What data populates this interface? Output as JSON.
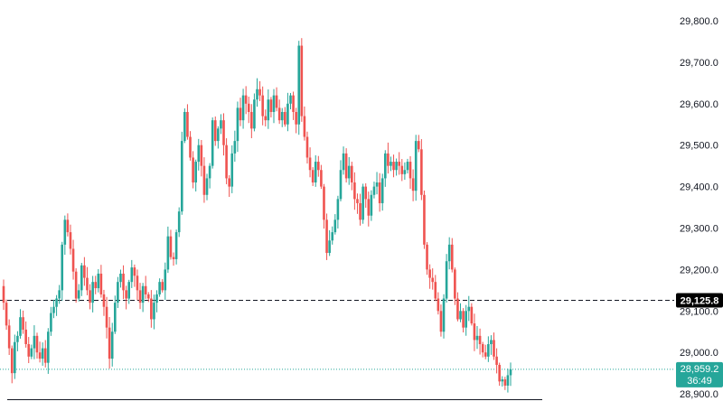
{
  "chart_data": {
    "type": "candlestick",
    "price_axis": {
      "ticks": [
        "29,800.0",
        "29,700.0",
        "29,600.0",
        "29,500.0",
        "29,400.0",
        "29,300.0",
        "29,200.0",
        "29,100.0",
        "29,000.0",
        "28,900.0"
      ],
      "tick_values": [
        29800,
        29700,
        29600,
        29500,
        29400,
        29300,
        29200,
        29100,
        29000,
        28900
      ],
      "range": [
        28880,
        29830
      ]
    },
    "levels": {
      "marked_price": {
        "value": 29125.8,
        "label": "29,125.8",
        "style": "dashed"
      },
      "last_price": {
        "value": 28959.2,
        "label": "28,959.2",
        "countdown": "36:49",
        "style": "dotted"
      },
      "horizontal_line": {
        "value": 28886
      }
    },
    "colors": {
      "up": "#26a69a",
      "down": "#ef5350",
      "last_price_tag": "#26a69a",
      "marked_tag": "#000000",
      "axis_text": "#131722",
      "grid": "none"
    },
    "series": [
      {
        "name": "",
        "closes": [
          29120,
          29065,
          29010,
          28950,
          29025,
          29040,
          29085,
          29055,
          29020,
          28990,
          29010,
          29040,
          29000,
          28985,
          29010,
          28975,
          29050,
          29095,
          29110,
          29130,
          29150,
          29260,
          29320,
          29290,
          29250,
          29195,
          29130,
          29150,
          29210,
          29180,
          29150,
          29120,
          29170,
          29155,
          29190,
          29140,
          29110,
          29060,
          28985,
          29050,
          29120,
          29170,
          29190,
          29150,
          29130,
          29170,
          29205,
          29185,
          29150,
          29120,
          29160,
          29140,
          29130,
          29080,
          29120,
          29140,
          29170,
          29150,
          29200,
          29280,
          29230,
          29225,
          29290,
          29340,
          29510,
          29580,
          29520,
          29470,
          29410,
          29460,
          29500,
          29450,
          29380,
          29420,
          29450,
          29560,
          29510,
          29540,
          29560,
          29500,
          29420,
          29400,
          29480,
          29510,
          29590,
          29560,
          29620,
          29600,
          29580,
          29540,
          29610,
          29635,
          29620,
          29570,
          29560,
          29610,
          29580,
          29620,
          29590,
          29560,
          29580,
          29550,
          29600,
          29620,
          29580,
          29550,
          29740,
          29570,
          29520,
          29470,
          29440,
          29410,
          29460,
          29440,
          29400,
          29320,
          29240,
          29270,
          29290,
          29320,
          29370,
          29440,
          29480,
          29420,
          29450,
          29410,
          29370,
          29360,
          29320,
          29400,
          29370,
          29330,
          29380,
          29400,
          29410,
          29360,
          29420,
          29480,
          29450,
          29460,
          29440,
          29460,
          29450,
          29430,
          29440,
          29460,
          29420,
          29390,
          29510,
          29490,
          29380,
          29260,
          29200,
          29180,
          29170,
          29130,
          29100,
          29050,
          29130,
          29220,
          29260,
          29200,
          29130,
          29080,
          29100,
          29060,
          29100,
          29110,
          29070,
          29030,
          29040,
          29020,
          29000,
          28990,
          29020,
          29030,
          28990,
          28970,
          28930,
          28935,
          28920,
          28945,
          28959
        ]
      }
    ]
  }
}
